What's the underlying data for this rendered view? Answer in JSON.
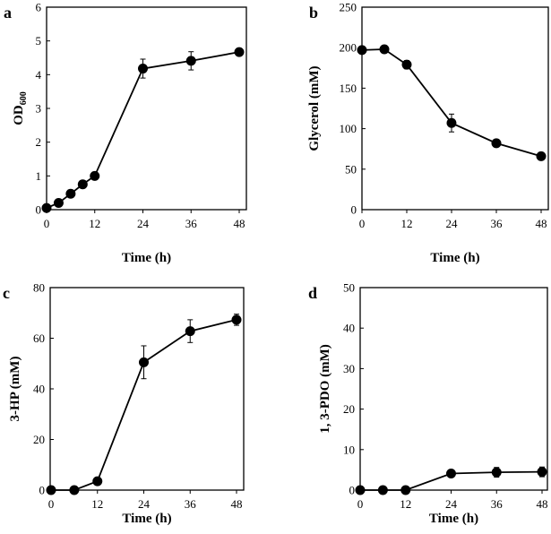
{
  "chart_data": [
    {
      "type": "line",
      "panel": "a",
      "xlabel": "Time (h)",
      "ylabel": "OD",
      "ylabel_sub": "600",
      "x": [
        0,
        3,
        6,
        9,
        12,
        24,
        36,
        48
      ],
      "y": [
        0.05,
        0.2,
        0.47,
        0.75,
        1.0,
        4.18,
        4.41,
        4.67
      ],
      "err": [
        0,
        0,
        0,
        0,
        0,
        0.28,
        0.27,
        0.05
      ],
      "ylim": [
        0,
        6
      ],
      "yticks": [
        0,
        1,
        2,
        3,
        4,
        5,
        6
      ],
      "xticks": [
        0,
        12,
        24,
        36,
        48
      ],
      "grid": false
    },
    {
      "type": "line",
      "panel": "b",
      "xlabel": "Time (h)",
      "ylabel": "Glycerol (mM)",
      "ylabel_sub": "",
      "x": [
        0,
        6,
        12,
        24,
        36,
        48
      ],
      "y": [
        197,
        198,
        179,
        107,
        82,
        66
      ],
      "err": [
        0,
        0,
        5,
        11,
        3,
        2
      ],
      "ylim": [
        0,
        250
      ],
      "yticks": [
        0,
        50,
        100,
        150,
        200,
        250
      ],
      "xticks": [
        0,
        12,
        24,
        36,
        48
      ],
      "grid": false
    },
    {
      "type": "line",
      "panel": "c",
      "xlabel": "Time (h)",
      "ylabel": "3-HP (mM)",
      "ylabel_sub": "",
      "x": [
        0,
        6,
        12,
        24,
        36,
        48
      ],
      "y": [
        0,
        0,
        3.5,
        50.5,
        62.8,
        67.3
      ],
      "err": [
        0,
        0,
        0.5,
        6.5,
        4.5,
        2.2
      ],
      "ylim": [
        0,
        80
      ],
      "yticks": [
        0,
        20,
        40,
        60,
        80
      ],
      "xticks": [
        0,
        12,
        24,
        36,
        48
      ],
      "grid": false
    },
    {
      "type": "line",
      "panel": "d",
      "xlabel": "Time (h)",
      "ylabel": "1, 3-PDO (mM)",
      "ylabel_sub": "",
      "x": [
        0,
        6,
        12,
        24,
        36,
        48
      ],
      "y": [
        0,
        0,
        0,
        4.1,
        4.4,
        4.5
      ],
      "err": [
        0,
        0,
        0,
        0.5,
        1.2,
        1.2
      ],
      "ylim": [
        0,
        50
      ],
      "yticks": [
        0,
        10,
        20,
        30,
        40,
        50
      ],
      "xticks": [
        0,
        12,
        24,
        36,
        48
      ],
      "grid": false
    }
  ]
}
